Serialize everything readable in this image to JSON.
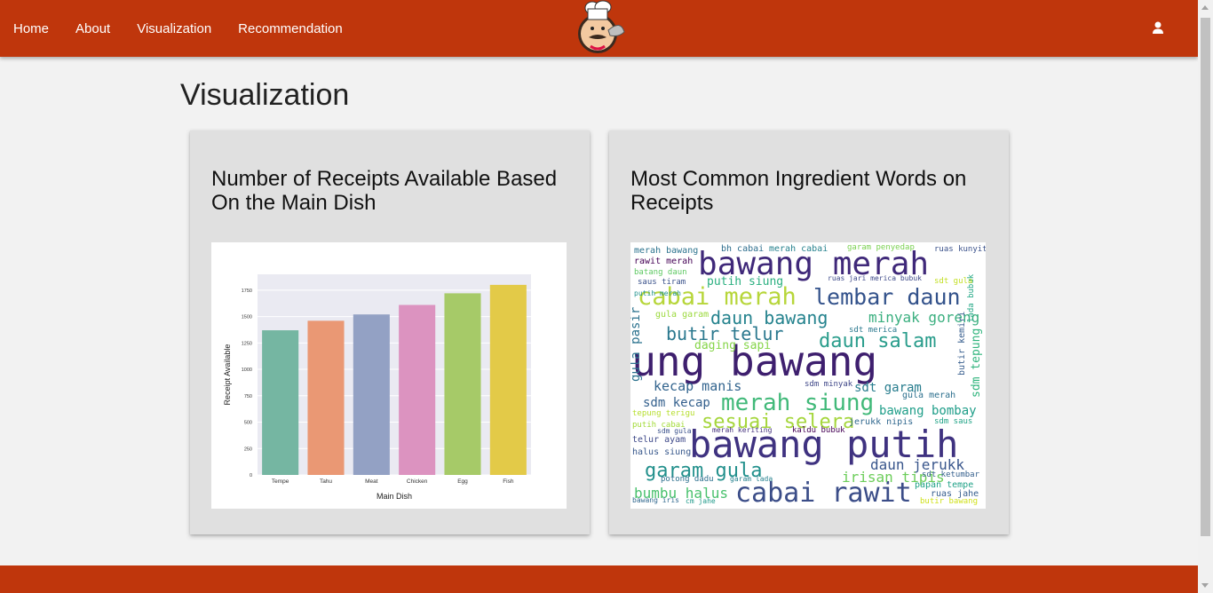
{
  "nav": {
    "links": [
      "Home",
      "About",
      "Visualization",
      "Recommendation"
    ]
  },
  "icons": {
    "logo": "chef-logo",
    "user": "user-icon"
  },
  "colors": {
    "navbar": "#bf360c",
    "card": "#e0e0e0",
    "background": "#f2f2f2"
  },
  "page": {
    "title": "Visualization"
  },
  "cards": [
    {
      "title": "Number of Receipts Available Based On the Main Dish"
    },
    {
      "title": "Most Common Ingredient Words on Receipts"
    }
  ],
  "chart_data": {
    "type": "bar",
    "categories": [
      "Tempe",
      "Tahu",
      "Meat",
      "Chicken",
      "Egg",
      "Fish"
    ],
    "values": [
      1370,
      1460,
      1520,
      1610,
      1720,
      1800
    ],
    "colors": [
      "#75b6a2",
      "#ea9874",
      "#93a1c4",
      "#dc93c0",
      "#a6ca68",
      "#e3ca48"
    ],
    "xlabel": "Main Dish",
    "ylabel": "Receipt Available",
    "yticks": [
      0,
      250,
      500,
      750,
      1000,
      1250,
      1500,
      1750
    ],
    "ylim": [
      0,
      1900
    ],
    "grid": true
  },
  "wordcloud": {
    "words": [
      {
        "text": "siung bawang",
        "color": "#3e1f6e",
        "rotate": 0
      },
      {
        "text": "bawang putih",
        "color": "#3f3280",
        "rotate": 0
      },
      {
        "text": "bawang merah",
        "color": "#3f2879",
        "rotate": 0
      },
      {
        "text": "cabai merah",
        "color": "#b7d63a",
        "rotate": 0
      },
      {
        "text": "cabai rawit",
        "color": "#3b4d88",
        "rotate": 0
      },
      {
        "text": "lembar daun",
        "color": "#33528b",
        "rotate": 0
      },
      {
        "text": "merah siung",
        "color": "#41b979",
        "rotate": 0
      },
      {
        "text": "sesuai selera",
        "color": "#a5d63c",
        "rotate": 0
      },
      {
        "text": "daun salam",
        "color": "#2a9d8c",
        "rotate": 0
      },
      {
        "text": "daun bawang",
        "color": "#25838e",
        "rotate": 0
      },
      {
        "text": "butir telur",
        "color": "#2a788e",
        "rotate": 0
      },
      {
        "text": "garam gula",
        "color": "#22908c",
        "rotate": 0
      },
      {
        "text": "minyak goreng",
        "color": "#3aaf7f",
        "rotate": 0
      },
      {
        "text": "kecap manis",
        "color": "#32648e",
        "rotate": 0
      },
      {
        "text": "sdm kecap",
        "color": "#34608d",
        "rotate": 0
      },
      {
        "text": "daun jerukk",
        "color": "#39568c",
        "rotate": 0
      },
      {
        "text": "bumbu halus",
        "color": "#49c16d",
        "rotate": 0
      },
      {
        "text": "irisan tipis",
        "color": "#6ccd5a",
        "rotate": 0
      },
      {
        "text": "bawang bombay",
        "color": "#1f9e89",
        "rotate": 0
      },
      {
        "text": "putih siung",
        "color": "#29af7f",
        "rotate": 0
      },
      {
        "text": "gula pasir",
        "color": "#2c728e",
        "rotate": -90
      },
      {
        "text": "sdt garam",
        "color": "#287d8e",
        "rotate": 0
      },
      {
        "text": "daging sapi",
        "color": "#86d549",
        "rotate": 0
      },
      {
        "text": "sdm tepung",
        "color": "#2fb47c",
        "rotate": -90
      },
      {
        "text": "butir kemiri",
        "color": "#365c8d",
        "rotate": -90
      },
      {
        "text": "merah bawang",
        "color": "#2c738e",
        "rotate": 0
      },
      {
        "text": "rawit merah",
        "color": "#440154",
        "rotate": 0
      },
      {
        "text": "batang daun",
        "color": "#5ec962",
        "rotate": 0
      },
      {
        "text": "saus tiram",
        "color": "#3b528b",
        "rotate": 0
      },
      {
        "text": "bh cabai",
        "color": "#2e6e8e",
        "rotate": 0
      },
      {
        "text": "merah cabai",
        "color": "#26828e",
        "rotate": 0
      },
      {
        "text": "garam penyedap",
        "color": "#7ad151",
        "rotate": 0
      },
      {
        "text": "ruas kunyit",
        "color": "#3b528b",
        "rotate": 0
      },
      {
        "text": "gula garam",
        "color": "#9bd93c",
        "rotate": 0
      },
      {
        "text": "tepung terigu",
        "color": "#b5de2b",
        "rotate": 0
      },
      {
        "text": "putih cabai",
        "color": "#a2da37",
        "rotate": 0
      },
      {
        "text": "telur ayam",
        "color": "#3e4989",
        "rotate": 0
      },
      {
        "text": "halus siung",
        "color": "#38588c",
        "rotate": 0
      },
      {
        "text": "potong dadu",
        "color": "#2d708e",
        "rotate": 0
      },
      {
        "text": "sdt merica",
        "color": "#2a788e",
        "rotate": 0
      },
      {
        "text": "ruas jari merica bubuk",
        "color": "#3e4a89",
        "rotate": 0
      },
      {
        "text": "jerukk nipis",
        "color": "#31688e",
        "rotate": 0
      },
      {
        "text": "papan tempe",
        "color": "#1fa187",
        "rotate": 0
      },
      {
        "text": "ruas jahe",
        "color": "#365d8d",
        "rotate": 0
      },
      {
        "text": "butir bawang",
        "color": "#d0e11c",
        "rotate": 0
      },
      {
        "text": "sdt ketumbar",
        "color": "#35608d",
        "rotate": 0
      },
      {
        "text": "sdm saus",
        "color": "#20a386",
        "rotate": 0
      },
      {
        "text": "gula merah",
        "color": "#2d708e",
        "rotate": 0
      },
      {
        "text": "sdm minyak",
        "color": "#3f4788",
        "rotate": 0
      },
      {
        "text": "merah keriting",
        "color": "#46337e",
        "rotate": 0
      },
      {
        "text": "kaldu bubuk",
        "color": "#440154",
        "rotate": 0
      },
      {
        "text": "bawang iris",
        "color": "#31688e",
        "rotate": 0
      },
      {
        "text": "cm jahe",
        "color": "#1f9a8a",
        "rotate": 0
      },
      {
        "text": "garam lada",
        "color": "#26818e",
        "rotate": 0
      },
      {
        "text": "sdm gula",
        "color": "#3b528b",
        "rotate": 0
      },
      {
        "text": "lada bubuk",
        "color": "#22a785",
        "rotate": -90
      },
      {
        "text": "putih merah",
        "color": "#20928c",
        "rotate": 0
      },
      {
        "text": "sdt gula",
        "color": "#c2df23",
        "rotate": 0
      }
    ]
  }
}
